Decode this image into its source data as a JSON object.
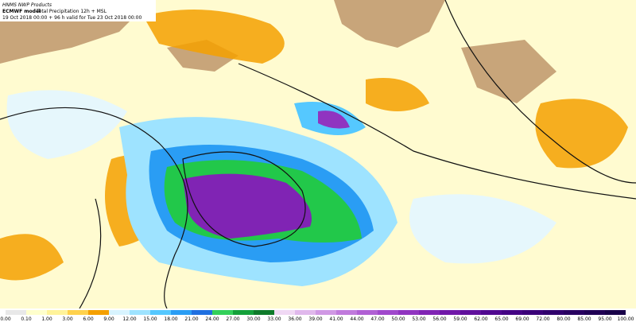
{
  "header": {
    "source": "HNMS NWP Products",
    "model": "ECMWF model",
    "product": "Total Precipitation 12h + MSL",
    "valid": "19 Oct 2018 00:00 + 96 h valid for Tue 23 Oct 2018 00:00"
  },
  "colorbar": {
    "labels": [
      "0.00",
      "0.10",
      "1.00",
      "3.00",
      "6.00",
      "9.00",
      "12.00",
      "15.00",
      "18.00",
      "21.00",
      "24.00",
      "27.00",
      "30.00",
      "33.00",
      "36.00",
      "39.00",
      "41.00",
      "44.00",
      "47.00",
      "50.00",
      "53.00",
      "56.00",
      "59.00",
      "62.00",
      "65.00",
      "69.00",
      "72.00",
      "80.00",
      "85.00",
      "95.00",
      "100.00"
    ],
    "colors": [
      "#e8e8e8",
      "#ffffcc",
      "#fff39a",
      "#ffd24d",
      "#f5a000",
      "#d8f4ff",
      "#9ee3ff",
      "#55c8ff",
      "#2a9df4",
      "#1f6fe0",
      "#33d05a",
      "#14a03a",
      "#0e7a2a",
      "#f0d8f4",
      "#e0b8ec",
      "#d098e4",
      "#c07adc",
      "#b060d4",
      "#a048cc",
      "#9034c0",
      "#8024b4",
      "#7018a8",
      "#60109c",
      "#500890",
      "#440484",
      "#3a0078",
      "#30006c",
      "#280060",
      "#200054",
      "#180048"
    ]
  }
}
